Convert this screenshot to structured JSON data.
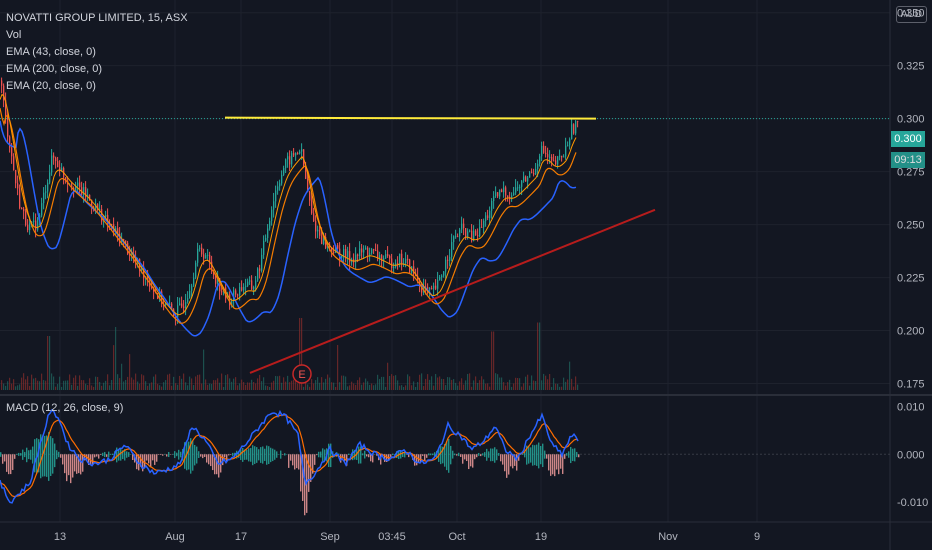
{
  "header": {
    "title": "NOVATTI GROUP LIMITED, 15, ASX",
    "indicators": [
      "Vol",
      "EMA (43, close, 0)",
      "EMA (200, close, 0)",
      "EMA (20, close, 0)"
    ],
    "currency": "AUD"
  },
  "macd": {
    "label": "MACD (12, 26, close, 9)"
  },
  "price_tags": {
    "last_price": "0.300",
    "countdown": "09:13"
  },
  "colors": {
    "background": "#131722",
    "up": "#26a69a",
    "down": "#ef5350",
    "ema_fast": "#f57c00",
    "ema_slow": "#2962ff",
    "ema_mid": "#ff9800",
    "resistance": "#ffeb3b",
    "trendline": "#b71c1c",
    "macd_line": "#2962ff",
    "signal_line": "#ff6d00",
    "grid": "#1e222d"
  },
  "chart_data": [
    {
      "type": "candlestick",
      "title": "NOVATTI GROUP LIMITED, 15, ASX",
      "x_ticks": [
        "13",
        "Aug",
        "17",
        "Sep",
        "03:45",
        "Oct",
        "19",
        "Nov",
        "9"
      ],
      "y_ticks": [
        "0.350",
        "0.325",
        "0.300",
        "0.275",
        "0.250",
        "0.225",
        "0.200",
        "0.175"
      ],
      "ylim": [
        0.171,
        0.356
      ],
      "price_path": [
        [
          0,
          0.318
        ],
        [
          5,
          0.3
        ],
        [
          10,
          0.285
        ],
        [
          15,
          0.27
        ],
        [
          20,
          0.258
        ],
        [
          25,
          0.252
        ],
        [
          30,
          0.248
        ],
        [
          38,
          0.252
        ],
        [
          45,
          0.268
        ],
        [
          52,
          0.282
        ],
        [
          58,
          0.278
        ],
        [
          65,
          0.272
        ],
        [
          75,
          0.268
        ],
        [
          85,
          0.264
        ],
        [
          95,
          0.258
        ],
        [
          105,
          0.252
        ],
        [
          115,
          0.246
        ],
        [
          125,
          0.24
        ],
        [
          135,
          0.232
        ],
        [
          145,
          0.226
        ],
        [
          155,
          0.218
        ],
        [
          165,
          0.212
        ],
        [
          175,
          0.208
        ],
        [
          182,
          0.212
        ],
        [
          190,
          0.222
        ],
        [
          198,
          0.238
        ],
        [
          205,
          0.236
        ],
        [
          212,
          0.228
        ],
        [
          220,
          0.22
        ],
        [
          228,
          0.214
        ],
        [
          236,
          0.218
        ],
        [
          244,
          0.222
        ],
        [
          252,
          0.22
        ],
        [
          260,
          0.232
        ],
        [
          268,
          0.252
        ],
        [
          276,
          0.268
        ],
        [
          284,
          0.278
        ],
        [
          292,
          0.282
        ],
        [
          300,
          0.286
        ],
        [
          306,
          0.268
        ],
        [
          312,
          0.252
        ],
        [
          318,
          0.246
        ],
        [
          326,
          0.24
        ],
        [
          334,
          0.238
        ],
        [
          342,
          0.236
        ],
        [
          350,
          0.234
        ],
        [
          358,
          0.236
        ],
        [
          366,
          0.238
        ],
        [
          374,
          0.236
        ],
        [
          382,
          0.234
        ],
        [
          390,
          0.232
        ],
        [
          398,
          0.234
        ],
        [
          406,
          0.232
        ],
        [
          414,
          0.226
        ],
        [
          422,
          0.22
        ],
        [
          430,
          0.217
        ],
        [
          438,
          0.222
        ],
        [
          446,
          0.234
        ],
        [
          454,
          0.244
        ],
        [
          462,
          0.248
        ],
        [
          470,
          0.244
        ],
        [
          478,
          0.246
        ],
        [
          486,
          0.254
        ],
        [
          494,
          0.262
        ],
        [
          502,
          0.266
        ],
        [
          510,
          0.264
        ],
        [
          518,
          0.268
        ],
        [
          526,
          0.272
        ],
        [
          534,
          0.276
        ],
        [
          540,
          0.286
        ],
        [
          546,
          0.282
        ],
        [
          552,
          0.278
        ],
        [
          558,
          0.28
        ],
        [
          564,
          0.284
        ],
        [
          570,
          0.294
        ],
        [
          576,
          0.298
        ]
      ],
      "last_price": 0.3,
      "resistance_level": 0.3,
      "trendline": [
        [
          0.18,
          250
        ],
        [
          0.257,
          655
        ]
      ],
      "volume_spikes": [
        [
          48,
          0.6
        ],
        [
          115,
          0.7
        ],
        [
          300,
          0.8
        ],
        [
          492,
          0.65
        ],
        [
          538,
          0.75
        ]
      ],
      "ema_43_offset": -0.006,
      "ema_20_offset": -0.002,
      "ema_200_offset": -0.012
    },
    {
      "type": "line",
      "title": "MACD (12, 26, close, 9)",
      "y_ticks": [
        "0.010",
        "0.000",
        "-0.010"
      ],
      "ylim": [
        -0.0142,
        0.0118
      ],
      "macd_path": [
        [
          0,
          -0.006
        ],
        [
          10,
          -0.01
        ],
        [
          20,
          -0.008
        ],
        [
          30,
          -0.006
        ],
        [
          40,
          0.002
        ],
        [
          50,
          0.009
        ],
        [
          58,
          0.008
        ],
        [
          68,
          0.002
        ],
        [
          80,
          -0.001
        ],
        [
          95,
          -0.002
        ],
        [
          110,
          -0.001
        ],
        [
          125,
          0.002
        ],
        [
          140,
          -0.002
        ],
        [
          155,
          -0.004
        ],
        [
          170,
          -0.003
        ],
        [
          180,
          -0.002
        ],
        [
          192,
          0.006
        ],
        [
          205,
          0.003
        ],
        [
          218,
          -0.002
        ],
        [
          232,
          -0.001
        ],
        [
          245,
          0.002
        ],
        [
          260,
          0.006
        ],
        [
          272,
          0.009
        ],
        [
          285,
          0.008
        ],
        [
          298,
          0.004
        ],
        [
          305,
          -0.006
        ],
        [
          315,
          -0.004
        ],
        [
          330,
          0.001
        ],
        [
          345,
          -0.002
        ],
        [
          360,
          0.002
        ],
        [
          375,
          0.0
        ],
        [
          390,
          -0.001
        ],
        [
          405,
          0.001
        ],
        [
          420,
          -0.002
        ],
        [
          435,
          -0.001
        ],
        [
          448,
          0.006
        ],
        [
          460,
          0.004
        ],
        [
          472,
          0.001
        ],
        [
          485,
          0.003
        ],
        [
          495,
          0.006
        ],
        [
          505,
          0.001
        ],
        [
          518,
          -0.001
        ],
        [
          530,
          0.004
        ],
        [
          542,
          0.008
        ],
        [
          552,
          0.002
        ],
        [
          562,
          0.0
        ],
        [
          572,
          0.004
        ],
        [
          578,
          0.003
        ]
      ]
    }
  ]
}
